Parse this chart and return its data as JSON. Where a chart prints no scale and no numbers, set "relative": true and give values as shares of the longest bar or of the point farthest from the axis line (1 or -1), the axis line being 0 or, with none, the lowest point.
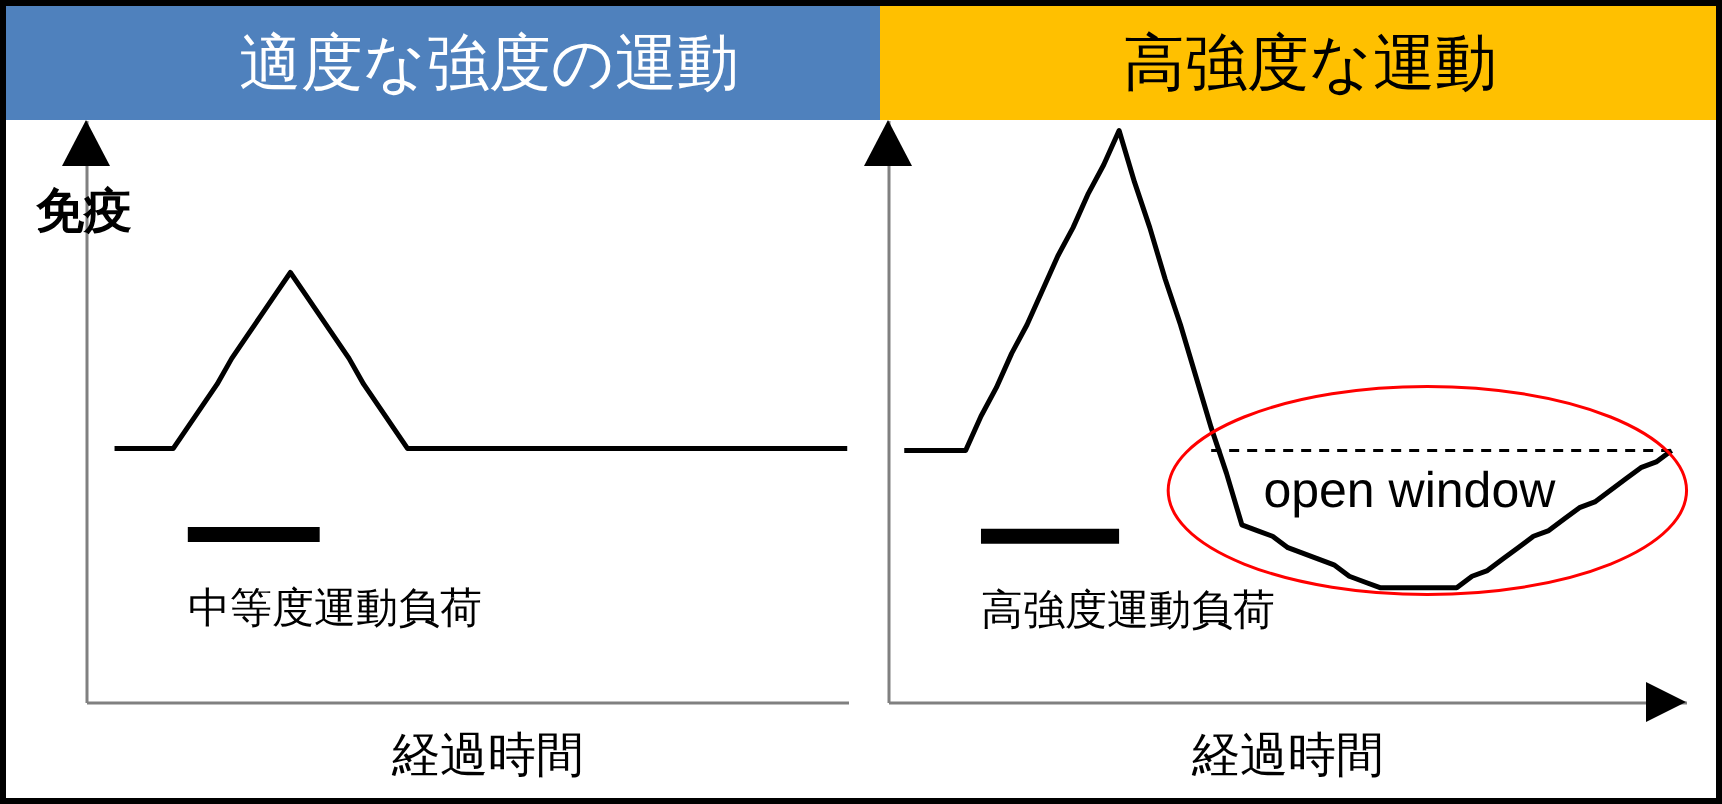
{
  "chart_data": [
    {
      "type": "line",
      "title": "適度な強度の運動",
      "xlabel": "経過時間",
      "ylabel": "免疫",
      "relative": true,
      "tick_labels": false,
      "categories": [
        null,
        null,
        null,
        null,
        null,
        null,
        null,
        null,
        null,
        null,
        null,
        null,
        null,
        null,
        null,
        null,
        null,
        null,
        null,
        null,
        null,
        null,
        null,
        null,
        null,
        null,
        null,
        null,
        null,
        null,
        null,
        null,
        null,
        null,
        null,
        null,
        null,
        null,
        null,
        null,
        null,
        null,
        null,
        null,
        null,
        null,
        null,
        null,
        null,
        null,
        null
      ],
      "series": [
        {
          "color": "#000000",
          "values": [
            0.59,
            0.59,
            0.59,
            0.59,
            0.59,
            0.64,
            0.69,
            0.74,
            0.8,
            0.85,
            0.9,
            0.95,
            1.0,
            0.95,
            0.9,
            0.85,
            0.8,
            0.74,
            0.69,
            0.64,
            0.59,
            0.59,
            0.59,
            0.59,
            0.59,
            0.59,
            0.59,
            0.59,
            0.59,
            0.59,
            0.59,
            0.59,
            0.59,
            0.59,
            0.59,
            0.59,
            0.59,
            0.59,
            0.59,
            0.59,
            0.59,
            0.59,
            0.59,
            0.59,
            0.59,
            0.59,
            0.59,
            0.59,
            0.59,
            0.59,
            0.59
          ]
        },
        {
          "name": "中等度運動負荷",
          "color": "#000000",
          "values": [
            null,
            null,
            null,
            null,
            null,
            0.39,
            0.39,
            0.39,
            0.39,
            0.39,
            0.39,
            0.39,
            0.39,
            0.39,
            0.39,
            null,
            null,
            null,
            null,
            null,
            null,
            null,
            null,
            null,
            null,
            null,
            null,
            null,
            null,
            null,
            null,
            null,
            null,
            null,
            null,
            null,
            null,
            null,
            null,
            null,
            null,
            null,
            null,
            null,
            null,
            null,
            null,
            null,
            null,
            null,
            null
          ]
        }
      ]
    },
    {
      "type": "line",
      "title": "高強度な運動",
      "xlabel": "経過時間",
      "relative": true,
      "tick_labels": false,
      "categories": [
        null,
        null,
        null,
        null,
        null,
        null,
        null,
        null,
        null,
        null,
        null,
        null,
        null,
        null,
        null,
        null,
        null,
        null,
        null,
        null,
        null,
        null,
        null,
        null,
        null,
        null,
        null,
        null,
        null,
        null,
        null,
        null,
        null,
        null,
        null,
        null,
        null,
        null,
        null,
        null,
        null,
        null,
        null,
        null,
        null,
        null,
        null,
        null,
        null,
        null,
        null
      ],
      "series": [
        {
          "color": "#000000",
          "values": [
            0.44,
            0.44,
            0.44,
            0.44,
            0.44,
            0.5,
            0.55,
            0.61,
            0.66,
            0.72,
            0.78,
            0.83,
            0.89,
            0.94,
            1.0,
            0.91,
            0.83,
            0.74,
            0.66,
            0.57,
            0.48,
            0.4,
            0.31,
            0.3,
            0.29,
            0.27,
            0.26,
            0.25,
            0.24,
            0.22,
            0.21,
            0.2,
            0.2,
            0.2,
            0.2,
            0.2,
            0.2,
            0.22,
            0.23,
            0.25,
            0.27,
            0.29,
            0.3,
            0.32,
            0.34,
            0.35,
            0.37,
            0.39,
            0.41,
            0.42,
            0.44
          ]
        },
        {
          "name": "高強度運動負荷",
          "color": "#000000",
          "values": [
            null,
            null,
            null,
            null,
            null,
            0.29,
            0.29,
            0.29,
            0.29,
            0.29,
            0.29,
            0.29,
            0.29,
            0.29,
            0.29,
            null,
            null,
            null,
            null,
            null,
            null,
            null,
            null,
            null,
            null,
            null,
            null,
            null,
            null,
            null,
            null,
            null,
            null,
            null,
            null,
            null,
            null,
            null,
            null,
            null,
            null,
            null,
            null,
            null,
            null,
            null,
            null,
            null,
            null,
            null,
            null
          ]
        },
        {
          "color": "#000000",
          "line_style": "dashed",
          "values": [
            null,
            null,
            null,
            null,
            null,
            null,
            null,
            null,
            null,
            null,
            null,
            null,
            null,
            null,
            null,
            null,
            null,
            null,
            null,
            null,
            0.44,
            0.44,
            0.44,
            0.44,
            0.44,
            0.44,
            0.44,
            0.44,
            0.44,
            0.44,
            0.44,
            0.44,
            0.44,
            0.44,
            0.44,
            0.44,
            0.44,
            0.44,
            0.44,
            0.44,
            0.44,
            0.44,
            0.44,
            0.44,
            0.44,
            0.44,
            0.44,
            0.44,
            0.44,
            0.44,
            0.44
          ]
        }
      ],
      "annotations": [
        "open window"
      ]
    }
  ]
}
